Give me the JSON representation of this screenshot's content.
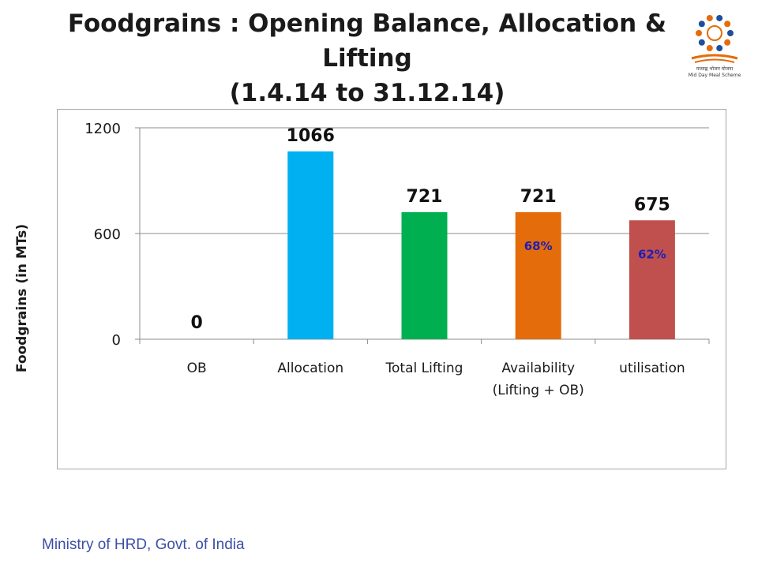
{
  "chart_data": {
    "type": "bar",
    "title_lines": [
      "Foodgrains : Opening Balance, Allocation & Lifting",
      "(1.4.14 to 31.12.14)"
    ],
    "ylabel": "Foodgrains (in MTs)",
    "xlabel": "",
    "categories": [
      [
        "OB"
      ],
      [
        "Allocation"
      ],
      [
        "Total Lifting"
      ],
      [
        "Availability",
        "(Lifting + OB)"
      ],
      [
        "utilisation"
      ]
    ],
    "values": [
      0,
      1066,
      721,
      721,
      675
    ],
    "value_labels": [
      "0",
      "1066",
      "721",
      "721",
      "675"
    ],
    "percent_labels": [
      "",
      "",
      "",
      "68%",
      "62%"
    ],
    "colors": [
      "#00b0f0",
      "#00b0f0",
      "#00b050",
      "#e46c0a",
      "#c0504d"
    ],
    "percent_color": "#1f1fb4",
    "ylim": [
      0,
      1200
    ],
    "yticks": [
      0,
      600,
      1200
    ],
    "grid": true,
    "legend": "none"
  },
  "logo": {
    "icon": "mid-day-meal-logo",
    "caption_line1": "मध्याह्न भोजन योजना",
    "caption_line2": "Mid Day Meal Scheme"
  },
  "footer": {
    "text": "Ministry of HRD, Govt. of India"
  }
}
